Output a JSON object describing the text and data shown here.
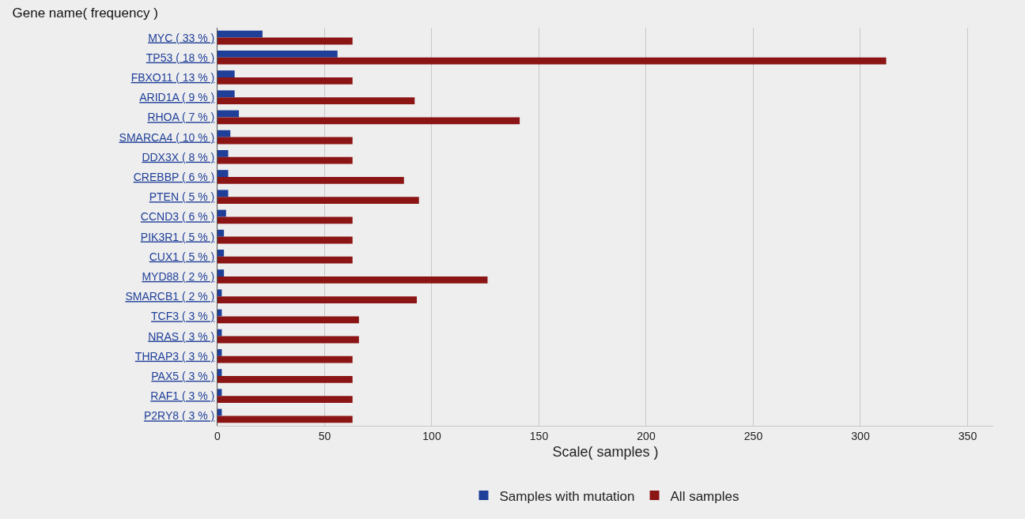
{
  "chart_data": {
    "type": "bar",
    "orientation": "horizontal",
    "title": "Gene name( frequency )",
    "xlabel": "Scale( samples )",
    "categories": [
      "MYC ( 33 % )",
      "TP53 ( 18 % )",
      "FBXO11 ( 13 % )",
      "ARID1A ( 9 % )",
      "RHOA ( 7 % )",
      "SMARCA4 ( 10 % )",
      "DDX3X ( 8 % )",
      "CREBBP ( 6 % )",
      "PTEN ( 5 % )",
      "CCND3 ( 6 % )",
      "PIK3R1 ( 5 % )",
      "CUX1 ( 5 % )",
      "MYD88 ( 2 % )",
      "SMARCB1 ( 2 % )",
      "TCF3 ( 3 % )",
      "NRAS ( 3 % )",
      "THRAP3 ( 3 % )",
      "PAX5 ( 3 % )",
      "RAF1 ( 3 % )",
      "P2RY8 ( 3 % )"
    ],
    "series": [
      {
        "name": "Samples with mutation",
        "color": "#1f3f99",
        "values": [
          21,
          56,
          8,
          8,
          10,
          6,
          5,
          5,
          5,
          4,
          3,
          3,
          3,
          2,
          2,
          2,
          2,
          2,
          2,
          2
        ]
      },
      {
        "name": "All samples",
        "color": "#8b1414",
        "values": [
          63,
          312,
          63,
          92,
          141,
          63,
          63,
          87,
          94,
          63,
          63,
          63,
          126,
          93,
          66,
          66,
          63,
          63,
          63,
          63
        ]
      }
    ],
    "xlim": [
      0,
      362
    ],
    "xticks": [
      0,
      50,
      100,
      150,
      200,
      250,
      300,
      350
    ],
    "grid": "x",
    "legend": "bottom"
  }
}
